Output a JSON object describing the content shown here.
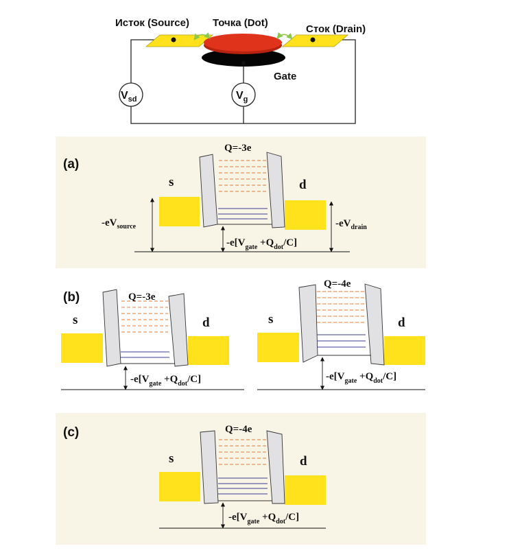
{
  "circuit": {
    "source_label": "Исток (Source)",
    "dot_label": "Точка (Dot)",
    "drain_label": "Сток (Drain)",
    "gate_label": "Gate",
    "vsd": {
      "main": "V",
      "sub": "sd"
    },
    "vg": {
      "main": "V",
      "sub": "g"
    }
  },
  "panel_a": {
    "tag": "(a)",
    "s": "s",
    "d": "d",
    "q": "Q=-3e",
    "ev_source": {
      "main": "-eV",
      "sub": "source"
    },
    "ev_drain": {
      "main": "-eV",
      "sub": "drain"
    },
    "gate_expr": {
      "a": "-e[V",
      "b": "gate",
      "c": " +Q",
      "d": "dot",
      "e": "/C]"
    }
  },
  "panel_b": {
    "tag": "(b)",
    "left": {
      "s": "s",
      "d": "d",
      "q": "Q=-3e",
      "gate_expr": {
        "a": "-e[V",
        "b": "gate",
        "c": " +Q",
        "d": "dot",
        "e": "/C]"
      }
    },
    "right": {
      "s": "s",
      "d": "d",
      "q": "Q=-4e",
      "gate_expr": {
        "a": "-e[V",
        "b": "gate",
        "c": " +Q",
        "d": "dot",
        "e": "/C]"
      }
    }
  },
  "panel_c": {
    "tag": "(c)",
    "s": "s",
    "d": "d",
    "q": "Q=-4e",
    "gate_expr": {
      "a": "-e[V",
      "b": "gate",
      "c": " +Q",
      "d": "dot",
      "e": "/C]"
    }
  },
  "colors": {
    "panel_bg": "#f8f4e6",
    "electrode": "#ffe21c",
    "barrier": "#e1e1e3",
    "dot_red": "#e0331c",
    "gate_black": "#050505",
    "empty_level": "#f0742f",
    "filled_level": "#3a3c92",
    "arrow_green": "#8ac94c"
  }
}
